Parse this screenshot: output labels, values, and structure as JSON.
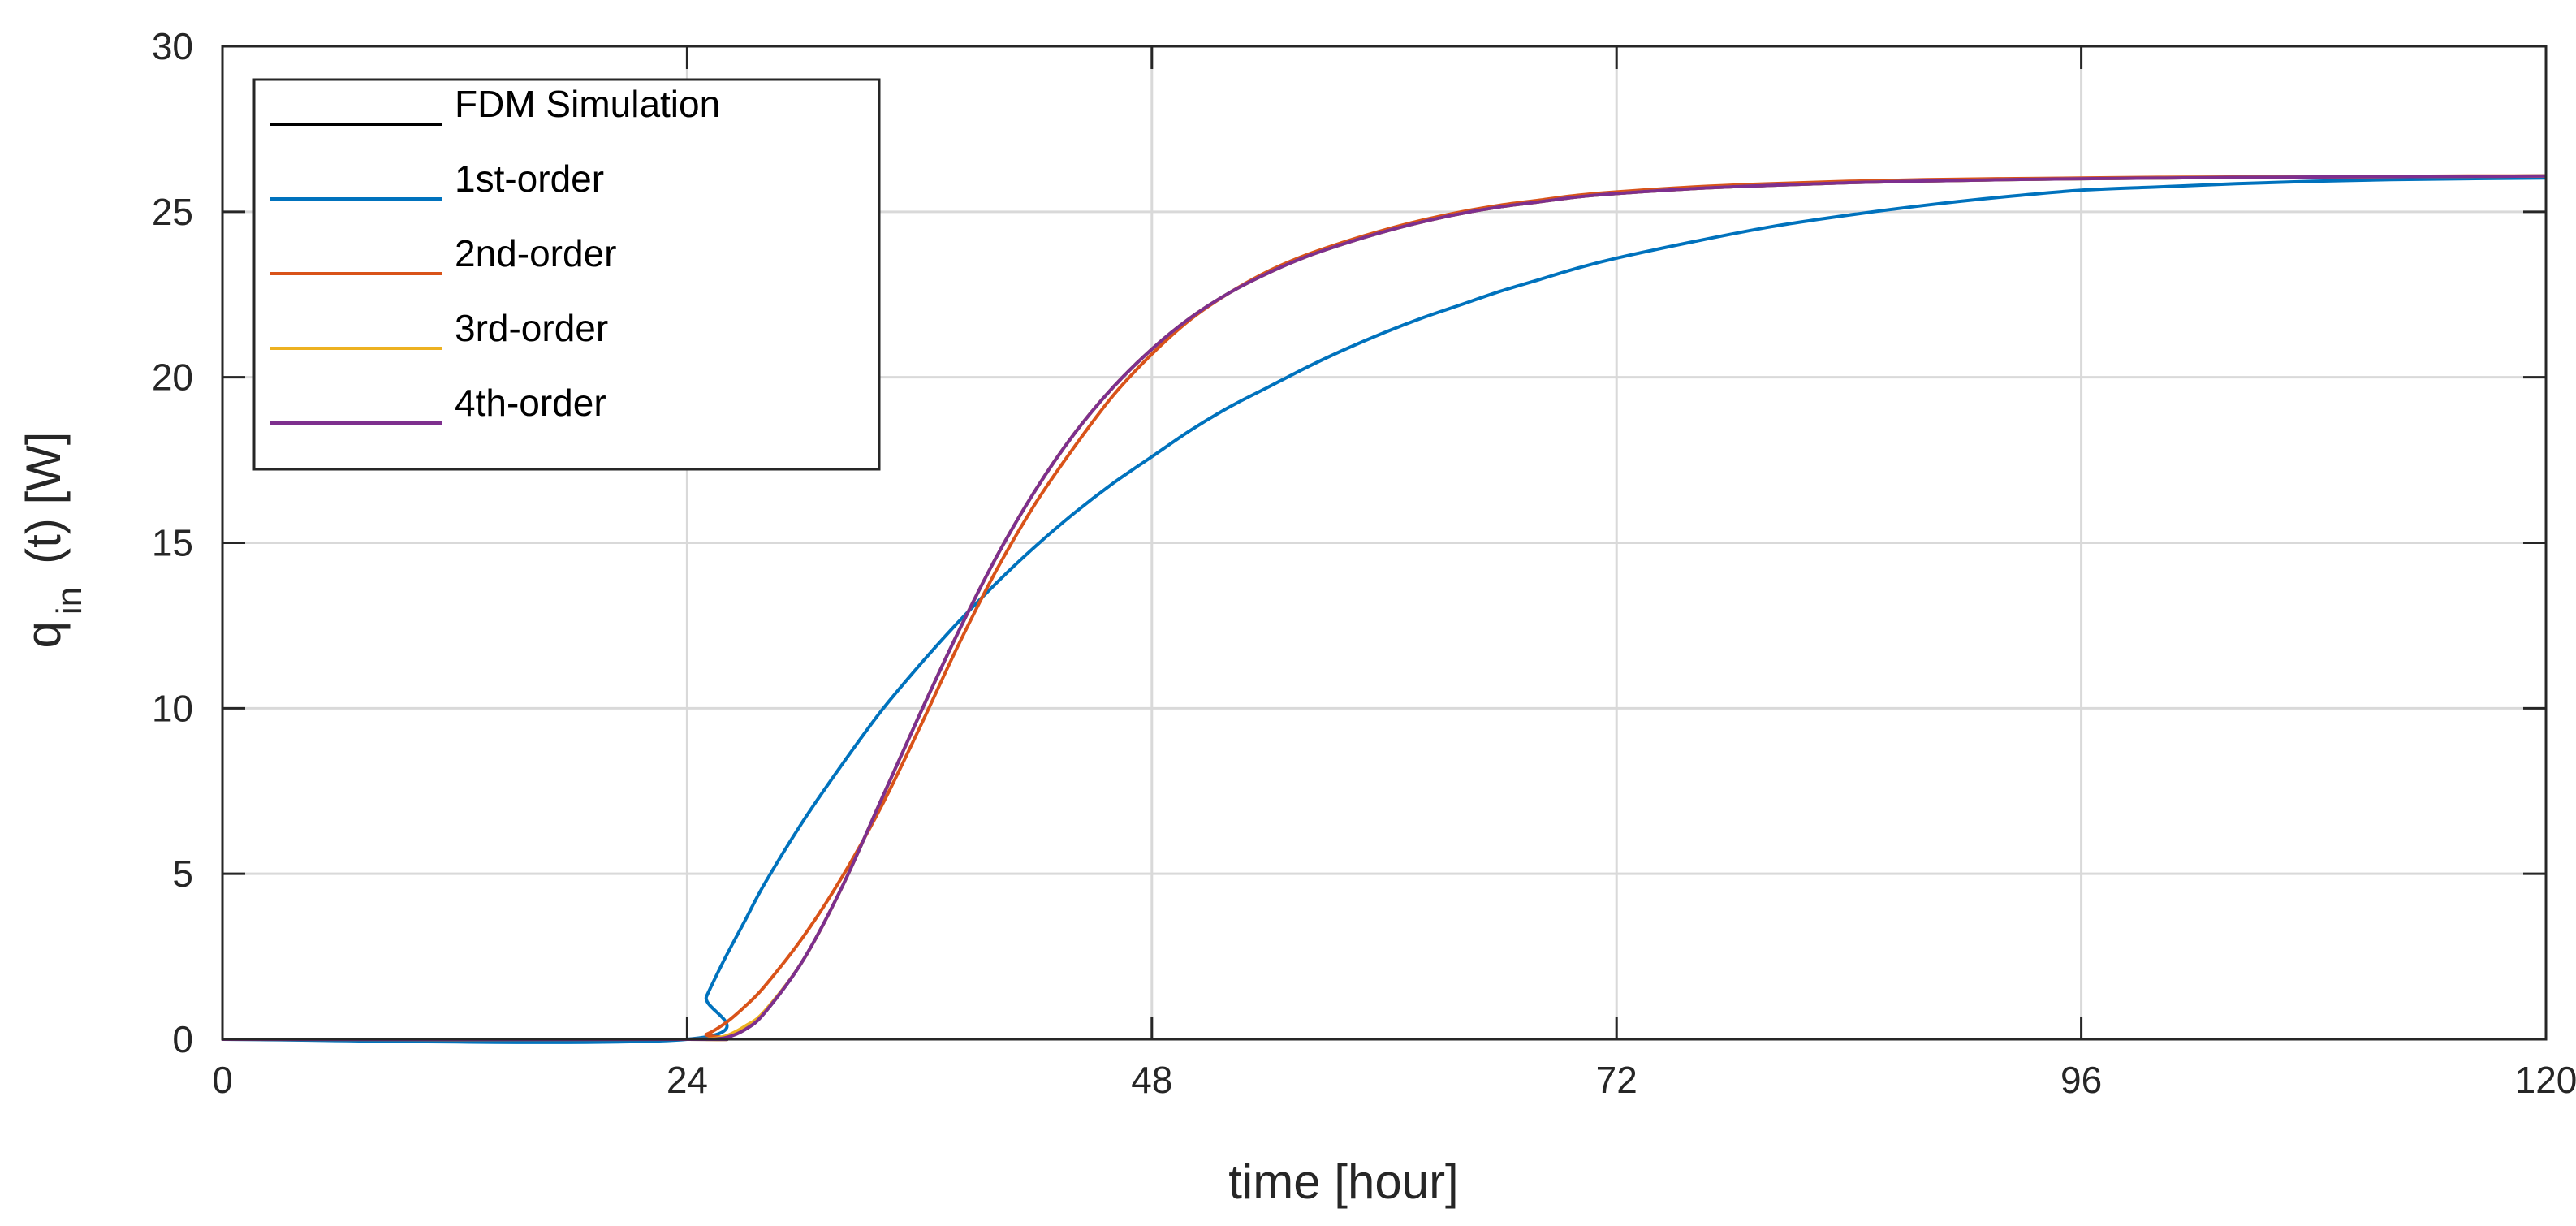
{
  "chart_data": {
    "type": "line",
    "xlabel": "time [hour]",
    "ylabel_main": "q",
    "ylabel_sub": "in",
    "ylabel_rest": "(t) [W]",
    "xlim": [
      0,
      120
    ],
    "ylim": [
      0,
      30
    ],
    "xticks": [
      0,
      24,
      48,
      72,
      96,
      120
    ],
    "yticks": [
      0,
      5,
      10,
      15,
      20,
      25,
      30
    ],
    "xtick_labels": [
      "0",
      "24",
      "48",
      "72",
      "96",
      "120"
    ],
    "ytick_labels": [
      "0",
      "5",
      "10",
      "15",
      "20",
      "25",
      "30"
    ],
    "grid": true,
    "legend_position": "top-left",
    "x": [
      0,
      24,
      25,
      26,
      27,
      28,
      30,
      32,
      34,
      36,
      38,
      40,
      42,
      44,
      46,
      48,
      50,
      52,
      54,
      56,
      58,
      60,
      62,
      64,
      66,
      68,
      70,
      72,
      76,
      80,
      84,
      88,
      92,
      96,
      100,
      104,
      108,
      112,
      116,
      120
    ],
    "series": [
      {
        "name": "FDM Simulation",
        "color": "#000000",
        "values": [
          0,
          0,
          0,
          0.05,
          0.3,
          0.8,
          2.4,
          4.6,
          7.2,
          9.8,
          12.3,
          14.6,
          16.6,
          18.3,
          19.7,
          20.85,
          21.8,
          22.55,
          23.15,
          23.65,
          24.05,
          24.4,
          24.7,
          24.95,
          25.15,
          25.3,
          25.45,
          25.55,
          25.7,
          25.8,
          25.88,
          25.93,
          25.97,
          26.0,
          26.02,
          26.04,
          26.05,
          26.06,
          26.07,
          26.08
        ]
      },
      {
        "name": "1st-order",
        "color": "#0072BD",
        "values": [
          0,
          0,
          1.3,
          2.5,
          3.6,
          4.7,
          6.6,
          8.3,
          9.9,
          11.3,
          12.6,
          13.8,
          14.9,
          15.9,
          16.8,
          17.6,
          18.4,
          19.1,
          19.7,
          20.3,
          20.85,
          21.35,
          21.8,
          22.2,
          22.6,
          22.95,
          23.3,
          23.6,
          24.1,
          24.55,
          24.9,
          25.2,
          25.45,
          25.65,
          25.75,
          25.85,
          25.92,
          25.97,
          26.0,
          26.02
        ]
      },
      {
        "name": "2nd-order",
        "color": "#D95319",
        "values": [
          0,
          0,
          0.15,
          0.5,
          1.0,
          1.6,
          3.1,
          4.9,
          7.0,
          9.4,
          11.9,
          14.2,
          16.2,
          17.9,
          19.45,
          20.7,
          21.75,
          22.55,
          23.2,
          23.7,
          24.1,
          24.45,
          24.75,
          25.0,
          25.2,
          25.35,
          25.5,
          25.6,
          25.75,
          25.85,
          25.92,
          25.97,
          26.0,
          26.02,
          26.04,
          26.05,
          26.06,
          26.07,
          26.08,
          26.08
        ]
      },
      {
        "name": "3rd-order",
        "color": "#EDB120",
        "values": [
          0,
          0,
          0,
          0.1,
          0.4,
          0.85,
          2.4,
          4.6,
          7.2,
          9.8,
          12.3,
          14.6,
          16.6,
          18.3,
          19.7,
          20.85,
          21.8,
          22.55,
          23.15,
          23.65,
          24.05,
          24.4,
          24.7,
          24.95,
          25.15,
          25.3,
          25.45,
          25.55,
          25.7,
          25.8,
          25.88,
          25.93,
          25.97,
          26.0,
          26.02,
          26.04,
          26.05,
          26.06,
          26.07,
          26.08
        ]
      },
      {
        "name": "4th-order",
        "color": "#7E2F8E",
        "values": [
          0,
          0,
          0,
          0.05,
          0.3,
          0.8,
          2.4,
          4.6,
          7.2,
          9.8,
          12.3,
          14.6,
          16.6,
          18.3,
          19.7,
          20.85,
          21.8,
          22.55,
          23.15,
          23.65,
          24.05,
          24.4,
          24.7,
          24.95,
          25.15,
          25.3,
          25.45,
          25.55,
          25.7,
          25.8,
          25.88,
          25.93,
          25.97,
          26.0,
          26.02,
          26.04,
          26.05,
          26.06,
          26.07,
          26.08
        ]
      }
    ]
  }
}
